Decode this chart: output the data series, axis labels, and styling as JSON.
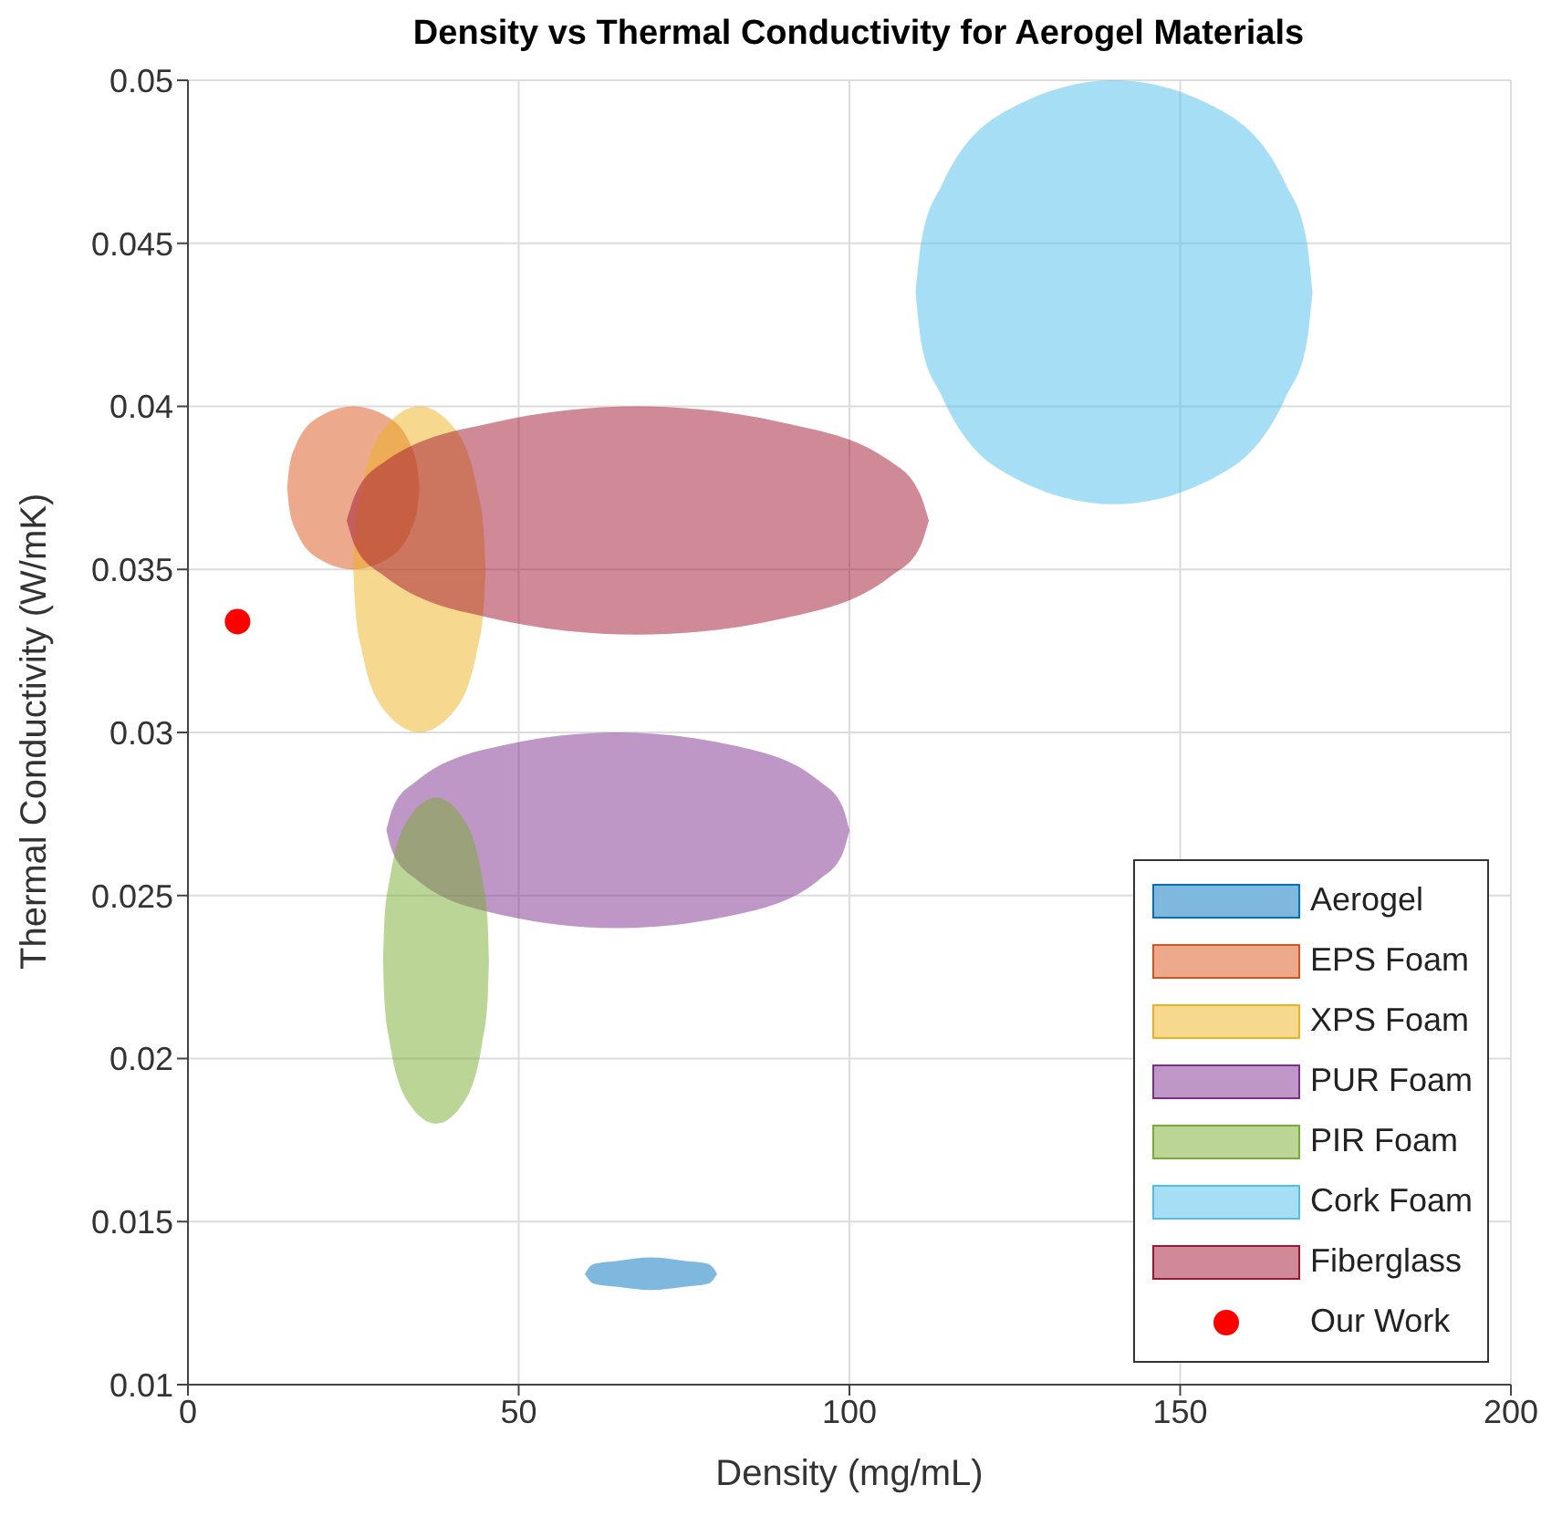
{
  "chart_data": {
    "type": "scatter",
    "title": "Density vs Thermal Conductivity for Aerogel Materials",
    "xlabel": "Density (mg/mL)",
    "ylabel": "Thermal Conductivity (W/mK)",
    "xlim": [
      0,
      200
    ],
    "xticks": [
      0,
      50,
      100,
      150,
      200
    ],
    "ylim": [
      0.01,
      0.05
    ],
    "yticks": [
      0.01,
      0.015,
      0.02,
      0.025,
      0.03,
      0.035,
      0.04,
      0.045,
      0.05
    ],
    "grid": true,
    "legend": "bottom right",
    "series": [
      {
        "name": "Aerogel",
        "color": "#0072bd",
        "type": "area",
        "x": [
          60,
          60.3,
          61.3,
          65,
          70,
          75,
          78.7,
          79.7,
          80
        ],
        "values": [
          null,
          null,
          null,
          null,
          null,
          null,
          null,
          null,
          null
        ],
        "upper": [
          0.0134,
          0.0135,
          0.0137,
          0.0138,
          0.0139,
          0.0138,
          0.0137,
          0.0135,
          0.0134
        ],
        "lower": [
          0.0134,
          0.0133,
          0.0131,
          0.013,
          0.0129,
          0.013,
          0.0131,
          0.0133,
          0.0134
        ]
      },
      {
        "name": "EPS Foam",
        "color": "#d95319",
        "type": "area",
        "x": [
          15,
          15.3,
          16.3,
          20,
          25,
          30,
          33.7,
          34.7,
          35
        ],
        "values": [
          null,
          null,
          null,
          null,
          null,
          null,
          null,
          null,
          null
        ],
        "upper": [
          0.0375,
          0.0381,
          0.0388,
          0.0397,
          0.04,
          0.0397,
          0.0388,
          0.0381,
          0.0375
        ],
        "lower": [
          0.0375,
          0.0369,
          0.0362,
          0.0353,
          0.035,
          0.0353,
          0.0362,
          0.0369,
          0.0375
        ]
      },
      {
        "name": "XPS Foam",
        "color": "#edb120",
        "type": "area",
        "x": [
          25,
          25.3,
          26.3,
          30,
          35,
          40,
          43.7,
          44.7,
          45
        ],
        "values": [
          null,
          null,
          null,
          null,
          null,
          null,
          null,
          null,
          null
        ],
        "upper": [
          0.035,
          0.0362,
          0.0375,
          0.0394,
          0.04,
          0.0394,
          0.0375,
          0.0362,
          0.035
        ],
        "lower": [
          0.035,
          0.0338,
          0.0325,
          0.0306,
          0.03,
          0.0306,
          0.0325,
          0.0338,
          0.035
        ]
      },
      {
        "name": "PUR Foam",
        "color": "#7e2f8e",
        "type": "area",
        "x": [
          30,
          31,
          34.5,
          47.5,
          65,
          82.5,
          95.5,
          99,
          100
        ],
        "values": [
          null,
          null,
          null,
          null,
          null,
          null,
          null,
          null,
          null
        ],
        "upper": [
          0.027,
          0.0277,
          0.0285,
          0.0296,
          0.03,
          0.0296,
          0.0285,
          0.0277,
          0.027
        ],
        "lower": [
          0.027,
          0.0263,
          0.0255,
          0.0244,
          0.024,
          0.0244,
          0.0255,
          0.0263,
          0.027
        ]
      },
      {
        "name": "PIR Foam",
        "color": "#77ac30",
        "type": "area",
        "x": [
          29.5,
          29.7,
          30.5,
          33.5,
          37.5,
          41.5,
          44.5,
          45.3,
          45.5
        ],
        "values": [
          null,
          null,
          null,
          null,
          null,
          null,
          null,
          null,
          null
        ],
        "upper": [
          0.023,
          0.0242,
          0.0255,
          0.0274,
          0.028,
          0.0274,
          0.0255,
          0.0242,
          0.023
        ],
        "lower": [
          0.023,
          0.0218,
          0.0205,
          0.0186,
          0.018,
          0.0186,
          0.0205,
          0.0218,
          0.023
        ]
      },
      {
        "name": "Cork Foam",
        "color": "#4dbeee",
        "type": "area",
        "x": [
          110,
          110.9,
          114,
          125,
          140,
          155,
          166,
          169.1,
          170
        ],
        "values": [
          null,
          null,
          null,
          null,
          null,
          null,
          null,
          null,
          null
        ],
        "upper": [
          0.0435,
          0.0451,
          0.0468,
          0.0492,
          0.05,
          0.0492,
          0.0468,
          0.0451,
          0.0435
        ],
        "lower": [
          0.0435,
          0.0419,
          0.0403,
          0.0378,
          0.037,
          0.0378,
          0.0403,
          0.0419,
          0.0435
        ]
      },
      {
        "name": "Fiberglass",
        "color": "#a2142f",
        "type": "area",
        "x": [
          24,
          25.3,
          29.7,
          46,
          68,
          90,
          106.3,
          110.7,
          112
        ],
        "values": [
          null,
          null,
          null,
          null,
          null,
          null,
          null,
          null,
          null
        ],
        "upper": [
          0.0365,
          0.0373,
          0.0383,
          0.0395,
          0.04,
          0.0395,
          0.0383,
          0.0373,
          0.0365
        ],
        "lower": [
          0.0365,
          0.0357,
          0.0348,
          0.0335,
          0.033,
          0.0335,
          0.0348,
          0.0357,
          0.0365
        ]
      },
      {
        "name": "Our Work",
        "color": "#ff0000",
        "x": [
          7.5
        ],
        "values": [
          0.0334
        ],
        "marker": "circle"
      }
    ]
  }
}
